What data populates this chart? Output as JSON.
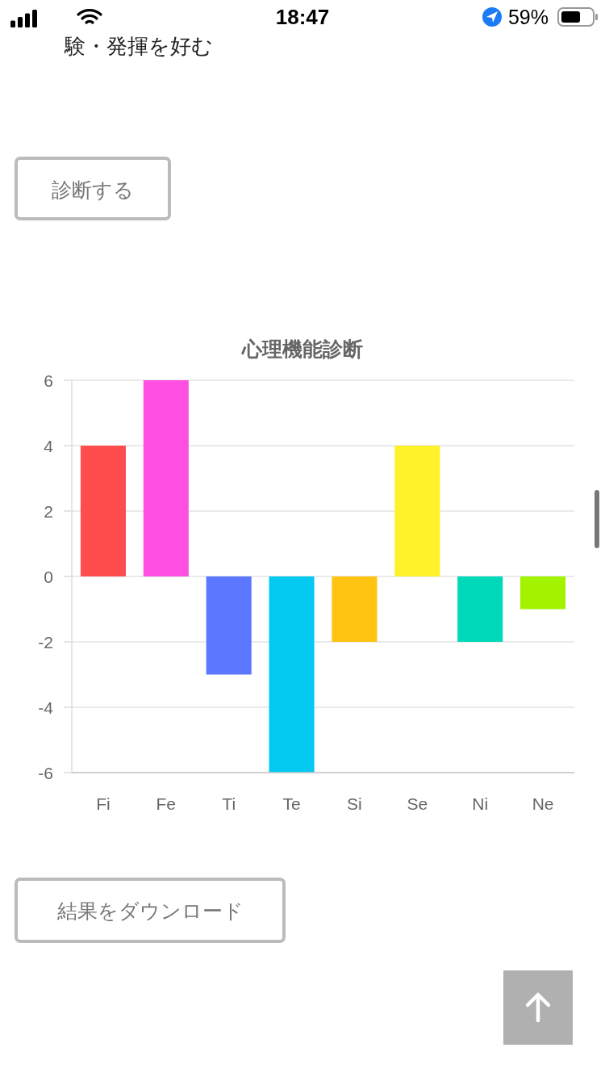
{
  "chart_data": {
    "type": "bar",
    "title": "心理機能診断",
    "categories": [
      "Fi",
      "Fe",
      "Ti",
      "Te",
      "Si",
      "Se",
      "Ni",
      "Ne"
    ],
    "values": [
      4,
      6,
      -3,
      -6,
      -2,
      4,
      -2,
      -1
    ],
    "colors": [
      "#ff4d4d",
      "#ff4fe1",
      "#5b76ff",
      "#04c9f1",
      "#ffc312",
      "#fff12a",
      "#00d9b9",
      "#a3f200"
    ],
    "ylim": [
      -6,
      6
    ],
    "yticks": [
      -6,
      -4,
      -2,
      0,
      2,
      4,
      6
    ],
    "grid": "y",
    "annotations": [
      "験・発揮を好む",
      "診断する",
      "結果をダウンロード",
      "18:47",
      "59%"
    ]
  }
}
